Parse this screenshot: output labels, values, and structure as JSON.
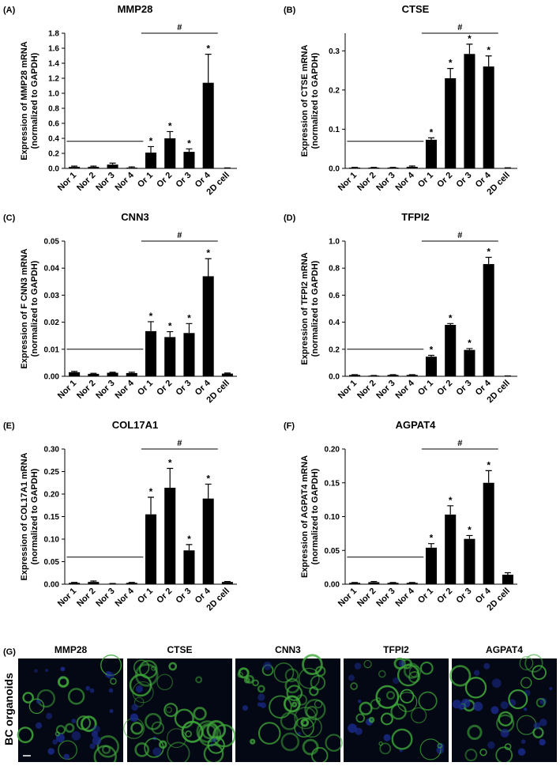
{
  "chart_data": [
    {
      "type": "bar",
      "panel": "(A)",
      "title": "MMP28",
      "ylabel": [
        "Expression of MMP28 mRNA",
        "(normalized to GAPDH)"
      ],
      "categories": [
        "Nor 1",
        "Nor 2",
        "Nor 3",
        "Nor 4",
        "Or 1",
        "Or 2",
        "Or 3",
        "Or 4",
        "2D cell"
      ],
      "values": [
        0.02,
        0.02,
        0.05,
        0.01,
        0.21,
        0.4,
        0.22,
        1.14,
        0.005
      ],
      "errors": [
        0.01,
        0.01,
        0.02,
        0.01,
        0.08,
        0.09,
        0.04,
        0.38,
        0.002
      ],
      "color": "#000000",
      "ylim": [
        0,
        1.8
      ],
      "yticks": [
        {
          "value": 0,
          "label": "0.0"
        },
        0.2,
        0.4,
        0.6,
        0.8,
        {
          "value": 1,
          "label": "1.0"
        },
        1.2,
        1.4,
        1.6,
        1.8
      ],
      "annotations": [
        {
          "category": "Or 1",
          "text": "*"
        },
        {
          "category": "Or 2",
          "text": "*"
        },
        {
          "category": "Or 3",
          "text": "*"
        },
        {
          "category": "Or 4",
          "text": "*"
        }
      ],
      "bracket": {
        "text": "#",
        "from": "Or 1",
        "to": "Or 4"
      },
      "lower_bracket": {
        "from": "Nor 1",
        "to": "Nor 4"
      }
    },
    {
      "type": "bar",
      "panel": "(B)",
      "title": "CTSE",
      "ylabel": [
        "Expression of CTSE mRNA",
        "(normalized to GAPDH)"
      ],
      "categories": [
        "Nor 1",
        "Nor 2",
        "Nor 3",
        "Nor 4",
        "Or 1",
        "Or 2",
        "Or 3",
        "Or 4",
        "2D cell"
      ],
      "values": [
        0.002,
        0.002,
        0.002,
        0.004,
        0.073,
        0.23,
        0.292,
        0.26,
        0.001
      ],
      "errors": [
        0.0005,
        0.0005,
        0.0005,
        0.002,
        0.005,
        0.025,
        0.025,
        0.027,
        0.0005
      ],
      "color": "#000000",
      "ylim": [
        0,
        0.345
      ],
      "yticks": [
        {
          "value": 0,
          "label": "0.0"
        },
        0.1,
        0.2,
        0.3
      ],
      "annotations": [
        {
          "category": "Or 1",
          "text": "*"
        },
        {
          "category": "Or 2",
          "text": "*"
        },
        {
          "category": "Or 3",
          "text": "*"
        },
        {
          "category": "Or 4",
          "text": "*"
        }
      ],
      "bracket": {
        "text": "#",
        "from": "Or 1",
        "to": "Or 4"
      },
      "lower_bracket": {
        "from": "Nor 1",
        "to": "Nor 4"
      }
    },
    {
      "type": "bar",
      "panel": "(C)",
      "title": "CNN3",
      "ylabel": [
        "Expression of F CNN3 mRNA",
        "(normalized to GAPDH)"
      ],
      "categories": [
        "Nor 1",
        "Nor 2",
        "Nor 3",
        "Nor 4",
        "Or 1",
        "Or 2",
        "Or 3",
        "Or 4",
        "2D cell"
      ],
      "values": [
        0.0015,
        0.0009,
        0.0013,
        0.0012,
        0.0167,
        0.0145,
        0.016,
        0.037,
        0.001
      ],
      "errors": [
        0.0003,
        0.0002,
        0.0002,
        0.0003,
        0.0035,
        0.002,
        0.0035,
        0.0065,
        0.0002
      ],
      "color": "#000000",
      "ylim": [
        0,
        0.05
      ],
      "yticks": [
        {
          "value": 0,
          "label": "0.00"
        },
        0.01,
        0.02,
        0.03,
        0.04,
        0.05
      ],
      "annotations": [
        {
          "category": "Or 1",
          "text": "*"
        },
        {
          "category": "Or 2",
          "text": "*"
        },
        {
          "category": "Or 3",
          "text": "*"
        },
        {
          "category": "Or 4",
          "text": "*"
        }
      ],
      "bracket": {
        "text": "#",
        "from": "Or 1",
        "to": "Or 4"
      },
      "lower_bracket": {
        "from": "Nor 1",
        "to": "Nor 4"
      }
    },
    {
      "type": "bar",
      "panel": "(D)",
      "title": "TFPI2",
      "ylabel": [
        "Expression of TFPI2 mRNA",
        "(normalized to GAPDH)"
      ],
      "categories": [
        "Nor 1",
        "Nor 2",
        "Nor 3",
        "Nor 4",
        "Or 1",
        "Or 2",
        "Or 3",
        "Or 4",
        "2D cell"
      ],
      "values": [
        0.01,
        0.005,
        0.01,
        0.01,
        0.145,
        0.38,
        0.195,
        0.83,
        0.002
      ],
      "errors": [
        0.002,
        0.001,
        0.002,
        0.002,
        0.01,
        0.01,
        0.01,
        0.05,
        0.001
      ],
      "color": "#000000",
      "ylim": [
        0,
        1.0
      ],
      "yticks": [
        {
          "value": 0,
          "label": "0.0"
        },
        0.2,
        0.4,
        0.6,
        0.8,
        {
          "value": 1,
          "label": "1.0"
        }
      ],
      "annotations": [
        {
          "category": "Or 1",
          "text": "*"
        },
        {
          "category": "Or 2",
          "text": "*"
        },
        {
          "category": "Or 3",
          "text": "*"
        },
        {
          "category": "Or 4",
          "text": "*"
        }
      ],
      "bracket": {
        "text": "#",
        "from": "Or 1",
        "to": "Or 4"
      },
      "lower_bracket": {
        "from": "Nor 1",
        "to": "Nor 4"
      }
    },
    {
      "type": "bar",
      "panel": "(E)",
      "title": "COL17A1",
      "ylabel": [
        "Expression of COL17A1 mRNA",
        "(normalized to GAPDH)"
      ],
      "categories": [
        "Nor 1",
        "Nor 2",
        "Nor 3",
        "Nor 4",
        "Or 1",
        "Or 2",
        "Or 3",
        "Or 4",
        "2D cell"
      ],
      "values": [
        0.003,
        0.005,
        0.001,
        0.003,
        0.155,
        0.214,
        0.075,
        0.19,
        0.005
      ],
      "errors": [
        0.001,
        0.002,
        0.0005,
        0.001,
        0.038,
        0.043,
        0.013,
        0.032,
        0.001
      ],
      "color": "#000000",
      "ylim": [
        0,
        0.3
      ],
      "yticks": [
        {
          "value": 0,
          "label": "0.00"
        },
        0.05,
        {
          "value": 0.1,
          "label": "0.10"
        },
        0.15,
        {
          "value": 0.2,
          "label": "0.20"
        },
        0.25,
        {
          "value": 0.3,
          "label": "0.30"
        }
      ],
      "annotations": [
        {
          "category": "Or 1",
          "text": "*"
        },
        {
          "category": "Or 2",
          "text": "*"
        },
        {
          "category": "Or 3",
          "text": "*"
        },
        {
          "category": "Or 4",
          "text": "*"
        }
      ],
      "bracket": {
        "text": "#",
        "from": "Or 1",
        "to": "Or 4"
      },
      "lower_bracket": {
        "from": "Nor 1",
        "to": "Nor 4"
      }
    },
    {
      "type": "bar",
      "panel": "(F)",
      "title": "AGPAT4",
      "ylabel": [
        "Expression of AGPAT4 mRNA",
        "(normalized to GAPDH)"
      ],
      "categories": [
        "Nor 1",
        "Nor 2",
        "Nor 3",
        "Nor 4",
        "Or 1",
        "Or 2",
        "Or 3",
        "Or 4",
        "2D cell"
      ],
      "values": [
        0.002,
        0.003,
        0.002,
        0.002,
        0.054,
        0.103,
        0.067,
        0.15,
        0.014
      ],
      "errors": [
        0.0005,
        0.001,
        0.0005,
        0.0005,
        0.006,
        0.013,
        0.005,
        0.018,
        0.003
      ],
      "color": "#000000",
      "ylim": [
        0,
        0.2
      ],
      "yticks": [
        {
          "value": 0,
          "label": "0.00"
        },
        0.05,
        {
          "value": 0.1,
          "label": "0.10"
        },
        0.15,
        {
          "value": 0.2,
          "label": "0.20"
        }
      ],
      "annotations": [
        {
          "category": "Or 1",
          "text": "*"
        },
        {
          "category": "Or 2",
          "text": "*"
        },
        {
          "category": "Or 3",
          "text": "*"
        },
        {
          "category": "Or 4",
          "text": "*"
        }
      ],
      "bracket": {
        "text": "#",
        "from": "Or 1",
        "to": "Or 4"
      },
      "lower_bracket": {
        "from": "Nor 1",
        "to": "Nor 4"
      }
    }
  ],
  "image_panel": {
    "panel": "(G)",
    "row_label": "BC organoids",
    "labels": [
      "MMP28",
      "CTSE",
      "CNN3",
      "TFPI2",
      "AGPAT4"
    ]
  }
}
